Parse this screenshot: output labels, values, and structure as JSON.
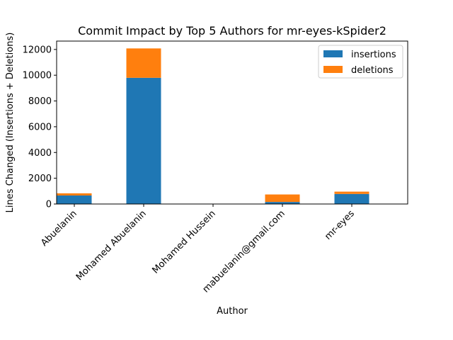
{
  "chart_data": {
    "type": "bar",
    "stacked": true,
    "title": "Commit Impact by Top 5 Authors for mr-eyes-kSpider2",
    "xlabel": "Author",
    "ylabel": "Lines Changed (Insertions + Deletions)",
    "categories": [
      "Abuelanin",
      "Mohamed Abuelanin",
      "Mohamed Hussein",
      "mabuelanin@gmail.com",
      "mr-eyes"
    ],
    "series": [
      {
        "name": "insertions",
        "color": "#1f77b4",
        "values": [
          660,
          9800,
          5,
          160,
          780
        ]
      },
      {
        "name": "deletions",
        "color": "#ff7f0e",
        "values": [
          170,
          2280,
          5,
          580,
          180
        ]
      }
    ],
    "ylim": [
      0,
      12650
    ],
    "yticks": [
      0,
      2000,
      4000,
      6000,
      8000,
      10000,
      12000
    ],
    "grid": false,
    "legend_position": "top-right"
  }
}
